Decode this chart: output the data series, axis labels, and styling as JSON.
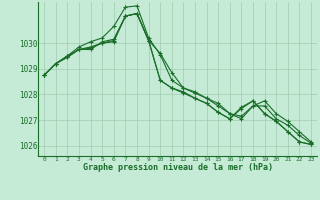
{
  "xlabel": "Graphe pression niveau de la mer (hPa)",
  "background_color": "#c5ead5",
  "grid_color": "#a0ccb0",
  "line_color": "#1a6e2a",
  "marker_color": "#1a6e2a",
  "xlim": [
    -0.5,
    23.5
  ],
  "ylim": [
    1025.6,
    1031.6
  ],
  "yticks": [
    1026,
    1027,
    1028,
    1029,
    1030
  ],
  "xticks": [
    0,
    1,
    2,
    3,
    4,
    5,
    6,
    7,
    8,
    9,
    10,
    11,
    12,
    13,
    14,
    15,
    16,
    17,
    18,
    19,
    20,
    21,
    22,
    23
  ],
  "line1": [
    1028.75,
    1029.2,
    1029.45,
    1029.75,
    1029.75,
    1030.05,
    1030.15,
    1031.05,
    1031.15,
    1030.1,
    1029.6,
    1028.85,
    1028.25,
    1028.1,
    1027.85,
    1027.65,
    1027.25,
    1027.05,
    1027.55,
    1027.75,
    1027.25,
    1026.95,
    1026.55,
    1026.15
  ],
  "line2": [
    1028.75,
    1029.2,
    1029.45,
    1029.75,
    1029.8,
    1030.0,
    1030.1,
    1031.05,
    1031.15,
    1030.1,
    1028.55,
    1028.25,
    1028.1,
    1027.85,
    1027.65,
    1027.3,
    1027.05,
    1027.5,
    1027.75,
    1027.25,
    1026.95,
    1026.55,
    1026.15,
    1026.05
  ],
  "line3": [
    1028.75,
    1029.2,
    1029.5,
    1029.85,
    1030.05,
    1030.2,
    1030.65,
    1031.4,
    1031.45,
    1030.2,
    1029.55,
    1028.55,
    1028.25,
    1028.05,
    1027.85,
    1027.55,
    1027.25,
    1027.15,
    1027.55,
    1027.55,
    1027.05,
    1026.8,
    1026.4,
    1026.1
  ],
  "line4": [
    1028.75,
    1029.2,
    1029.5,
    1029.75,
    1029.85,
    1030.0,
    1030.05,
    1031.05,
    1031.15,
    1030.1,
    1028.55,
    1028.25,
    1028.05,
    1027.85,
    1027.65,
    1027.3,
    1027.05,
    1027.45,
    1027.75,
    1027.25,
    1026.95,
    1026.55,
    1026.15,
    1026.05
  ]
}
